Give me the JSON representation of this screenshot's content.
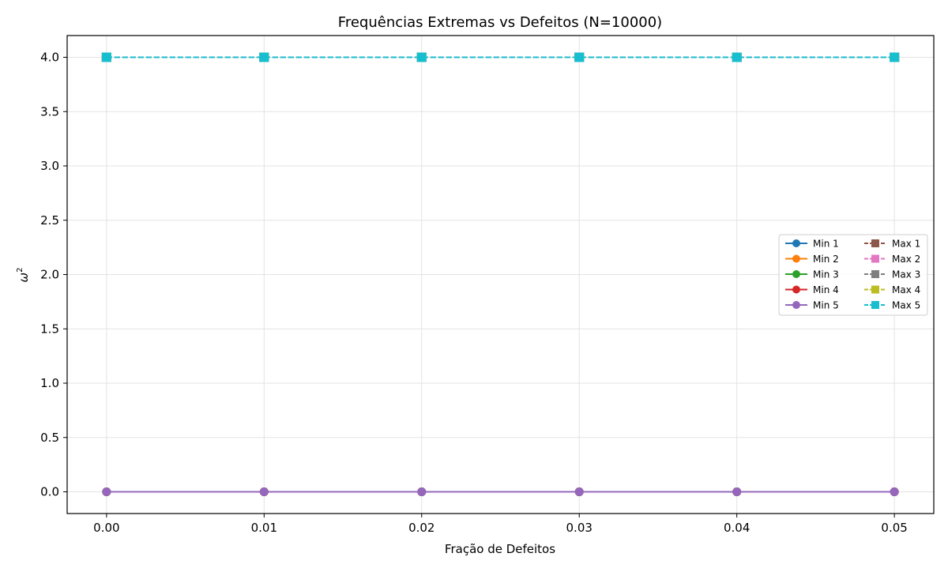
{
  "chart_data": {
    "type": "line",
    "title": "Frequências Extremas vs Defeitos (N=10000)",
    "xlabel": "Fração de Defeitos",
    "ylabel_base": "ω",
    "ylabel_sup": "2",
    "x": [
      0.0,
      0.01,
      0.02,
      0.03,
      0.04,
      0.05
    ],
    "x_tick_values": [
      0.0,
      0.01,
      0.02,
      0.03,
      0.04,
      0.05
    ],
    "x_tick_labels": [
      "0.00",
      "0.01",
      "0.02",
      "0.03",
      "0.04",
      "0.05"
    ],
    "y_tick_values": [
      0.0,
      0.5,
      1.0,
      1.5,
      2.0,
      2.5,
      3.0,
      3.5,
      4.0
    ],
    "y_tick_labels": [
      "0.0",
      "0.5",
      "1.0",
      "1.5",
      "2.0",
      "2.5",
      "3.0",
      "3.5",
      "4.0"
    ],
    "xlim": [
      -0.0025,
      0.0525
    ],
    "ylim": [
      -0.2,
      4.2
    ],
    "grid": true,
    "legend_position": "center-right",
    "legend_columns": 2,
    "series": [
      {
        "name": "Min 1",
        "values": [
          0,
          0,
          0,
          0,
          0,
          0
        ],
        "color": "#1f77b4",
        "marker": "circle",
        "dash": "solid"
      },
      {
        "name": "Min 2",
        "values": [
          0,
          0,
          0,
          0,
          0,
          0
        ],
        "color": "#ff7f0e",
        "marker": "circle",
        "dash": "solid"
      },
      {
        "name": "Min 3",
        "values": [
          0,
          0,
          0,
          0,
          0,
          0
        ],
        "color": "#2ca02c",
        "marker": "circle",
        "dash": "solid"
      },
      {
        "name": "Min 4",
        "values": [
          0,
          0,
          0,
          0,
          0,
          0
        ],
        "color": "#d62728",
        "marker": "circle",
        "dash": "solid"
      },
      {
        "name": "Min 5",
        "values": [
          0,
          0,
          0,
          0,
          0,
          0
        ],
        "color": "#9467bd",
        "marker": "circle",
        "dash": "solid"
      },
      {
        "name": "Max 1",
        "values": [
          4,
          4,
          4,
          4,
          4,
          4
        ],
        "color": "#8c564b",
        "marker": "square",
        "dash": "dashed"
      },
      {
        "name": "Max 2",
        "values": [
          4,
          4,
          4,
          4,
          4,
          4
        ],
        "color": "#e377c2",
        "marker": "square",
        "dash": "dashed"
      },
      {
        "name": "Max 3",
        "values": [
          4,
          4,
          4,
          4,
          4,
          4
        ],
        "color": "#7f7f7f",
        "marker": "square",
        "dash": "dashed"
      },
      {
        "name": "Max 4",
        "values": [
          4,
          4,
          4,
          4,
          4,
          4
        ],
        "color": "#bcbd22",
        "marker": "square",
        "dash": "dashed"
      },
      {
        "name": "Max 5",
        "values": [
          4,
          4,
          4,
          4,
          4,
          4
        ],
        "color": "#17becf",
        "marker": "square",
        "dash": "dashed"
      }
    ]
  }
}
